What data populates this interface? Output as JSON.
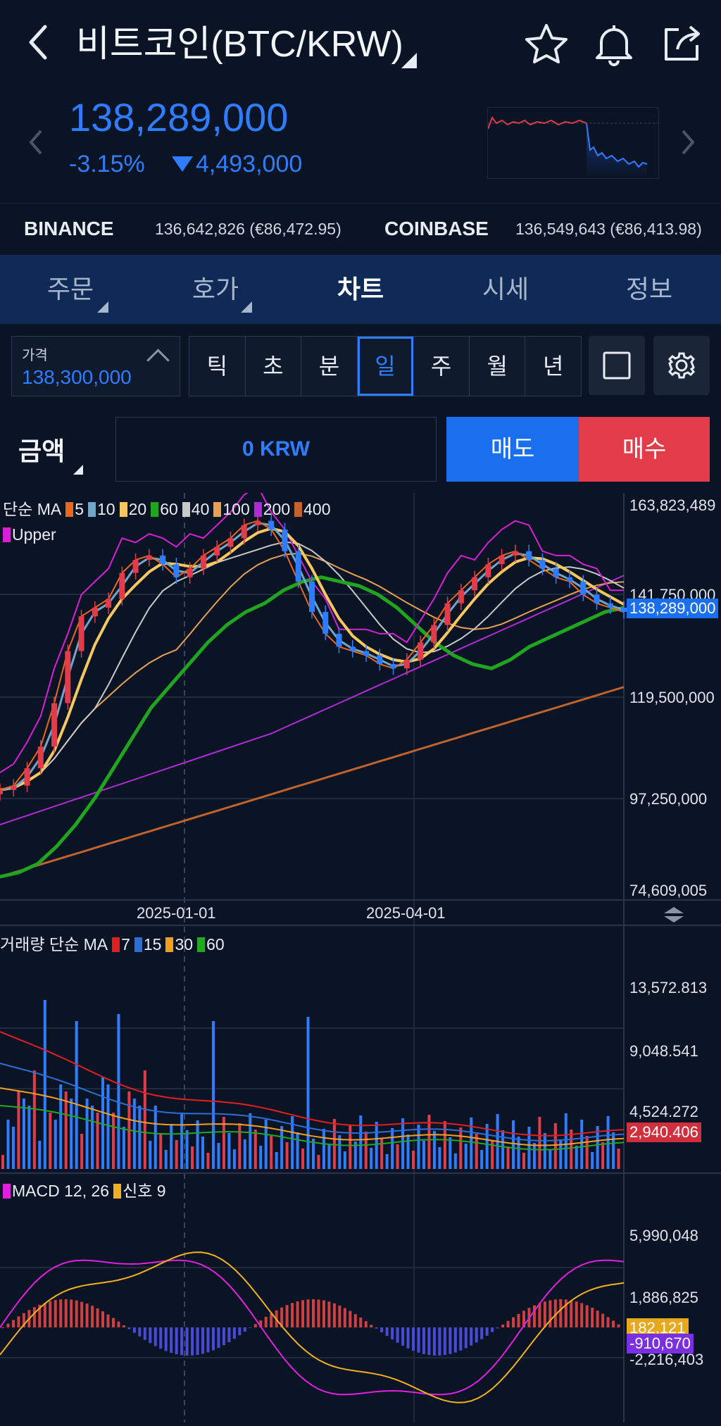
{
  "header": {
    "title": "비트코인(BTC/KRW)",
    "price": "138,289,000",
    "change_pct": "-3.15%",
    "change_amt": "4,493,000"
  },
  "exchanges": [
    {
      "name": "BINANCE",
      "value": "136,642,826 (€86,472.95)"
    },
    {
      "name": "COINBASE",
      "value": "136,549,643 (€86,413.98)"
    }
  ],
  "tabs": [
    "주문",
    "호가",
    "차트",
    "시세",
    "정보"
  ],
  "active_tab": "차트",
  "price_box": {
    "label": "가격",
    "value": "138,300,000"
  },
  "periods": [
    "틱",
    "초",
    "분",
    "일",
    "주",
    "월",
    "년"
  ],
  "active_period": "일",
  "amount": {
    "label": "금액",
    "value": "0 KRW"
  },
  "sell_label": "매도",
  "buy_label": "매수",
  "colors": {
    "up": "#e23b4a",
    "down": "#2f7dff",
    "bg": "#0b1424",
    "tabbar": "#0f2a57"
  },
  "icons": [
    "back-icon",
    "star-icon",
    "bell-icon",
    "share-icon",
    "square-icon",
    "gear-icon"
  ],
  "chart_data": [
    {
      "type": "line",
      "name": "price",
      "legend": {
        "title": "단순 MA",
        "items": [
          {
            "label": "5",
            "color": "#e8681e"
          },
          {
            "label": "10",
            "color": "#6fa6c9"
          },
          {
            "label": "20",
            "color": "#f6c85f"
          },
          {
            "label": "60",
            "color": "#1fa51f"
          },
          {
            "label": "40",
            "color": "#c8c8c8"
          },
          {
            "label": "100",
            "color": "#e5a054"
          },
          {
            "label": "200",
            "color": "#b02bd8"
          },
          {
            "label": "400",
            "color": "#c2622d"
          }
        ],
        "extra": "Upper",
        "extra_color": "#d61fd6"
      },
      "y_ticks": [
        "163,823,489",
        "141,750,000",
        "119,500,000",
        "97,250,000",
        "74,609,005"
      ],
      "ylim": [
        74609005,
        163823489
      ],
      "x_ticks": [
        "2025-01-01",
        "2025-04-01"
      ],
      "current_price_tag": "138,289,000",
      "close": [
        98,
        99,
        103,
        108,
        118,
        130,
        138,
        140,
        142,
        148,
        151,
        152,
        150,
        147,
        149,
        152,
        154,
        156,
        159,
        160,
        158,
        153,
        146,
        139,
        134,
        131,
        130,
        129,
        127,
        126,
        128,
        132,
        136,
        141,
        144,
        147,
        150,
        152,
        153,
        151,
        149,
        147,
        146,
        143,
        141,
        140,
        139
      ],
      "ma60": [
        78,
        79,
        81,
        85,
        90,
        96,
        103,
        110,
        117,
        122,
        127,
        132,
        136,
        139,
        141,
        144,
        146,
        147,
        146,
        145,
        143,
        140,
        136,
        132,
        129,
        127,
        126,
        128,
        131,
        133,
        135,
        137,
        139,
        140
      ]
    },
    {
      "type": "bar",
      "name": "volume",
      "legend": {
        "title": "거래량 단순 MA",
        "items": [
          {
            "label": "7",
            "color": "#e02020"
          },
          {
            "label": "15",
            "color": "#2b6fd6"
          },
          {
            "label": "30",
            "color": "#f0a020"
          },
          {
            "label": "60",
            "color": "#22a822"
          }
        ]
      },
      "y_ticks": [
        "13,572.813",
        "9,048.541",
        "4,524.272"
      ],
      "current_tag": "2,940.406"
    },
    {
      "type": "line",
      "name": "macd",
      "legend": {
        "title": "MACD 12, 26",
        "signal": "신호 9",
        "items": [
          {
            "label": "MACD 12, 26",
            "color": "#e020e0"
          },
          {
            "label": "신호 9",
            "color": "#f0b020"
          }
        ]
      },
      "y_ticks": [
        "5,990,048",
        "1,886,825",
        "-2,216,403"
      ],
      "signal_tag": "182,121",
      "macd_tag": "-910,670"
    }
  ]
}
